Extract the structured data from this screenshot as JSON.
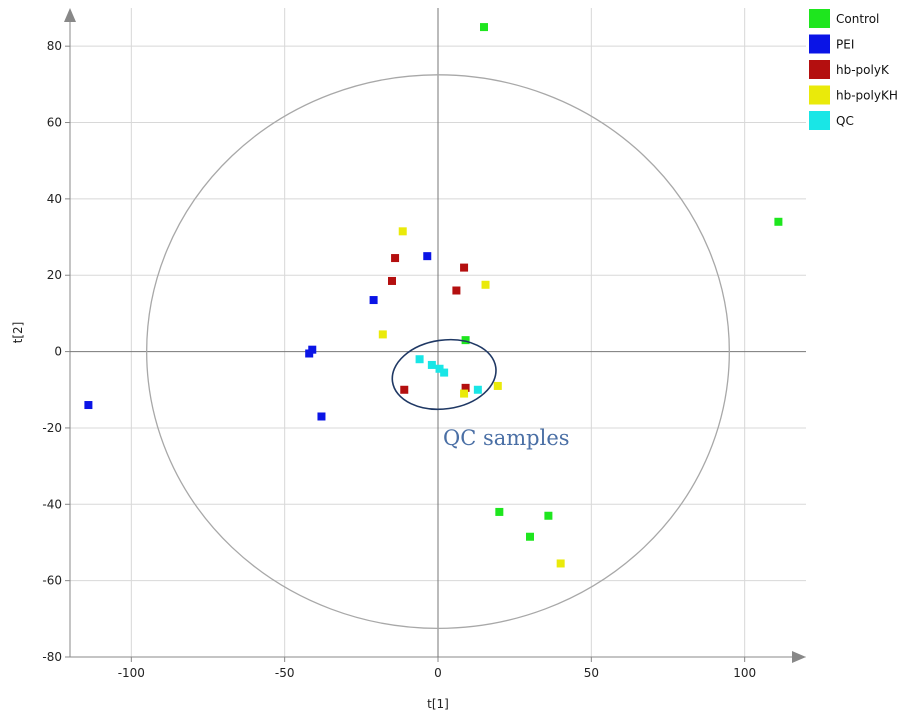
{
  "chart_data": {
    "type": "scatter",
    "xlabel": "t[1]",
    "ylabel": "t[2]",
    "xlim": [
      -120,
      120
    ],
    "ylim": [
      -80,
      90
    ],
    "xticks": [
      -100,
      -50,
      0,
      50,
      100
    ],
    "yticks": [
      -80,
      -60,
      -40,
      -20,
      0,
      20,
      40,
      60,
      80
    ],
    "grid": true,
    "legend": "top-right",
    "ellipse": {
      "rx": 95,
      "ry": 72.5
    },
    "annotation": {
      "text": "QC samples",
      "ellipse_center": [
        2,
        -6
      ],
      "ellipse_radii": [
        17,
        9
      ]
    },
    "series": [
      {
        "name": "Control",
        "color": "#1ee61e",
        "points": [
          [
            15,
            85
          ],
          [
            111,
            34
          ],
          [
            9,
            3
          ],
          [
            20,
            -42
          ],
          [
            36,
            -43
          ],
          [
            30,
            -48.5
          ]
        ]
      },
      {
        "name": "PEI",
        "color": "#0a14e6",
        "points": [
          [
            -3.5,
            25
          ],
          [
            -21,
            13.5
          ],
          [
            -42,
            -0.5
          ],
          [
            -41,
            0.5
          ],
          [
            -114,
            -14
          ],
          [
            -38,
            -17
          ]
        ]
      },
      {
        "name": "hb-polyK",
        "color": "#b40f0f",
        "points": [
          [
            -14,
            24.5
          ],
          [
            -15,
            18.5
          ],
          [
            8.5,
            22
          ],
          [
            6,
            16
          ],
          [
            -11,
            -10
          ],
          [
            9,
            -9.5
          ]
        ]
      },
      {
        "name": "hb-polyKH",
        "color": "#eaea0a",
        "points": [
          [
            -11.5,
            31.5
          ],
          [
            15.5,
            17.5
          ],
          [
            -18,
            4.5
          ],
          [
            19.5,
            -9
          ],
          [
            8.5,
            -11
          ],
          [
            40,
            -55.5
          ]
        ]
      },
      {
        "name": "QC",
        "color": "#19e6e6",
        "points": [
          [
            -6,
            -2
          ],
          [
            -2,
            -3.5
          ],
          [
            0.5,
            -4.5
          ],
          [
            2,
            -5.5
          ],
          [
            13,
            -10
          ]
        ]
      }
    ]
  }
}
